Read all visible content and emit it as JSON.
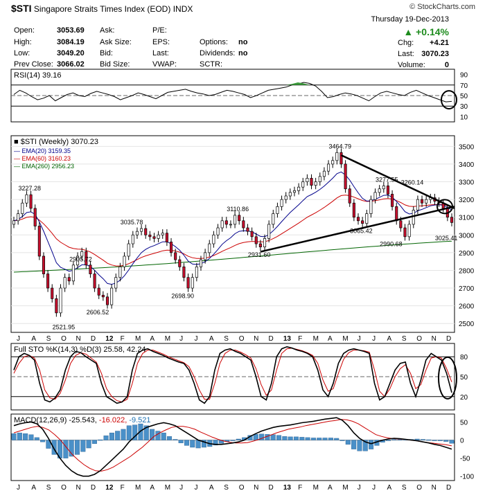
{
  "header": {
    "symbol": "$STI",
    "name": "Singapore Straits Times Index (EOD)",
    "exchange": "INDX",
    "brand": "© StockCharts.com",
    "date": "Thursday  19-Dec-2013",
    "change_pct": "+0.14%",
    "up_color": "#1e8c1e"
  },
  "quote": {
    "open_label": "Open:",
    "open": "3053.69",
    "high_label": "High:",
    "high": "3084.19",
    "low_label": "Low:",
    "low": "3049.20",
    "prev_label": "Prev Close:",
    "prev": "3066.02",
    "ask_label": "Ask:",
    "asksize_label": "Ask Size:",
    "bid_label": "Bid:",
    "bidsize_label": "Bid Size:",
    "pe_label": "P/E:",
    "eps_label": "EPS:",
    "last_label": "Last:",
    "vwap_label": "VWAP:",
    "options_label": "Options:",
    "options": "no",
    "dividends_label": "Dividends:",
    "dividends": "no",
    "sctr_label": "SCTR:",
    "chg_label": "Chg:",
    "chg": "+4.21",
    "last2_label": "Last:",
    "last2": "3070.23",
    "volume_label": "Volume:",
    "volume": "0"
  },
  "chart_data": [
    {
      "type": "line",
      "panel": "rsi",
      "legend": "RSI(14) 39.16",
      "ylim": [
        0,
        100
      ],
      "ticks": [
        "70",
        "50",
        "30"
      ],
      "tick_values": [
        70,
        50,
        30
      ],
      "extra_ticks": [
        "90",
        "10"
      ],
      "extra_values": [
        90,
        10
      ],
      "series": [
        {
          "values": [
            52,
            60,
            55,
            48,
            42,
            45,
            50,
            40,
            46,
            52,
            55,
            50,
            48,
            54,
            58,
            55,
            52,
            48,
            42,
            46,
            50,
            55,
            52,
            48,
            44,
            50,
            56,
            58,
            60,
            62,
            58,
            55,
            53,
            50,
            52,
            56,
            60,
            58,
            55,
            52,
            46,
            50,
            55,
            60,
            62,
            64,
            66,
            70,
            72,
            75,
            73,
            68,
            58,
            46,
            48,
            52,
            55,
            53,
            50,
            45,
            40,
            48,
            55,
            58,
            55,
            52,
            50,
            56,
            60,
            55,
            50,
            46,
            42,
            38,
            39
          ]
        }
      ]
    },
    {
      "type": "candlestick",
      "panel": "price",
      "legend": "$STI (Weekly) 3070.23",
      "ylim": [
        2450,
        3560
      ],
      "yticks": [
        2500,
        2600,
        2700,
        2800,
        2900,
        3000,
        3100,
        3200,
        3300,
        3400,
        3500
      ],
      "ytick_labels": [
        "2500",
        "2600",
        "2700",
        "2800",
        "2900",
        "3000",
        "3100",
        "3200",
        "3300",
        "3400",
        "3500"
      ],
      "x_labels": [
        "J",
        "A",
        "S",
        "O",
        "N",
        "D",
        "12",
        "F",
        "M",
        "A",
        "M",
        "J",
        "J",
        "A",
        "S",
        "O",
        "N",
        "D",
        "13",
        "F",
        "M",
        "A",
        "M",
        "J",
        "J",
        "A",
        "S",
        "O",
        "N",
        "D"
      ],
      "close": [
        3080,
        3120,
        3180,
        3227,
        3150,
        3050,
        2880,
        2780,
        2700,
        2640,
        2560,
        2700,
        2760,
        2740,
        2830,
        2880,
        2906,
        2830,
        2780,
        2700,
        2660,
        2650,
        2606,
        2700,
        2760,
        2820,
        2880,
        2950,
        3000,
        3020,
        3036,
        3000,
        2990,
        2980,
        3000,
        3010,
        2960,
        2900,
        2860,
        2820,
        2760,
        2700,
        2760,
        2820,
        2860,
        2900,
        2950,
        3000,
        3040,
        3080,
        3060,
        3060,
        3111,
        3080,
        3040,
        3020,
        2990,
        2950,
        2932,
        2980,
        3060,
        3120,
        3160,
        3200,
        3220,
        3240,
        3250,
        3270,
        3300,
        3320,
        3280,
        3300,
        3330,
        3360,
        3400,
        3420,
        3465,
        3400,
        3260,
        3180,
        3100,
        3080,
        3065,
        3120,
        3200,
        3240,
        3260,
        3277,
        3230,
        3160,
        3080,
        3040,
        2990,
        3060,
        3140,
        3200,
        3180,
        3200,
        3210,
        3190,
        3180,
        3150,
        3100,
        3070
      ],
      "ema20": {
        "legend": "EMA(20) 3159.35",
        "color": "#00008b"
      },
      "ema60": {
        "legend": "EMA(60) 3160.23",
        "color": "#cc0000"
      },
      "ema260": {
        "legend": "EMA(260) 2956.23",
        "color": "#006400"
      },
      "annotations": [
        "3227.28",
        "3464.79",
        "3277.55",
        "3260.14",
        "3110.86",
        "3035.78",
        "2905.72",
        "3065.42",
        "3025.41",
        "2931.60",
        "2990.68",
        "2698.90",
        "2606.52",
        "2521.95"
      ],
      "annotation_values": [
        3227.28,
        3464.79,
        3277.55,
        3260.14,
        3110.86,
        3035.78,
        2905.72,
        3065.42,
        3025.41,
        2931.6,
        2990.68,
        2698.9,
        2606.52,
        2521.95
      ]
    },
    {
      "type": "line",
      "panel": "sto",
      "legend": "Full STO %K(14,3) %D(3) 25.58, 42.24",
      "ylim": [
        0,
        100
      ],
      "ticks": [
        "80",
        "50",
        "20"
      ],
      "tick_values": [
        80,
        50,
        20
      ],
      "series": [
        {
          "color": "#000000",
          "values": [
            60,
            80,
            85,
            82,
            75,
            40,
            15,
            12,
            18,
            30,
            60,
            80,
            88,
            86,
            80,
            75,
            70,
            40,
            20,
            15,
            10,
            12,
            20,
            60,
            85,
            90,
            92,
            88,
            85,
            82,
            78,
            75,
            72,
            70,
            60,
            40,
            15,
            10,
            20,
            60,
            85,
            90,
            92,
            88,
            85,
            80,
            75,
            50,
            20,
            15,
            40,
            80,
            92,
            95,
            93,
            90,
            88,
            85,
            80,
            60,
            30,
            20,
            40,
            70,
            85,
            90,
            92,
            90,
            88,
            85,
            40,
            15,
            20,
            40,
            60,
            70,
            72,
            40,
            20,
            45,
            75,
            85,
            80,
            75,
            55,
            26
          ]
        },
        {
          "color": "#cc0000",
          "values": [
            55,
            70,
            80,
            82,
            78,
            60,
            30,
            18,
            16,
            25,
            45,
            70,
            82,
            86,
            84,
            78,
            72,
            55,
            32,
            20,
            14,
            12,
            16,
            40,
            70,
            85,
            90,
            90,
            87,
            84,
            80,
            77,
            74,
            71,
            65,
            50,
            30,
            16,
            16,
            40,
            70,
            85,
            90,
            90,
            87,
            83,
            78,
            62,
            38,
            22,
            30,
            60,
            85,
            92,
            93,
            91,
            89,
            86,
            82,
            70,
            45,
            28,
            32,
            55,
            76,
            86,
            90,
            90,
            89,
            87,
            60,
            28,
            20,
            32,
            50,
            62,
            68,
            55,
            32,
            38,
            60,
            78,
            80,
            78,
            62,
            42
          ]
        }
      ]
    },
    {
      "type": "line",
      "panel": "macd",
      "legend_a": "MACD(12,26,9)",
      "legend_b": "-25.543,",
      "legend_c": "-16.022,",
      "legend_d": "-9.521",
      "ylim": [
        -112,
        72
      ],
      "ticks": [
        "50",
        "0",
        "-50",
        "-100"
      ],
      "tick_values": [
        50,
        0,
        -50,
        -100
      ],
      "macd": [
        40,
        45,
        48,
        50,
        45,
        30,
        5,
        -25,
        -50,
        -70,
        -85,
        -95,
        -100,
        -100,
        -95,
        -85,
        -70,
        -55,
        -40,
        -25,
        -5,
        10,
        25,
        35,
        40,
        45,
        48,
        45,
        40,
        30,
        20,
        10,
        0,
        -5,
        -10,
        -12,
        -12,
        -10,
        -8,
        -5,
        0,
        10,
        18,
        25,
        30,
        35,
        38,
        40,
        42,
        45,
        48,
        50,
        52,
        55,
        58,
        60,
        62,
        55,
        40,
        20,
        5,
        -5,
        -10,
        -5,
        0,
        3,
        5,
        4,
        2,
        0,
        -2,
        -5,
        -8,
        -12,
        -15,
        -20,
        -25
      ],
      "signal": [
        20,
        25,
        30,
        35,
        38,
        35,
        28,
        15,
        0,
        -20,
        -40,
        -55,
        -68,
        -78,
        -85,
        -86,
        -82,
        -75,
        -65,
        -55,
        -45,
        -32,
        -20,
        -5,
        10,
        20,
        28,
        35,
        38,
        38,
        35,
        30,
        22,
        15,
        8,
        2,
        -3,
        -6,
        -8,
        -8,
        -7,
        -3,
        2,
        8,
        14,
        20,
        25,
        30,
        33,
        36,
        40,
        43,
        46,
        49,
        52,
        54,
        57,
        56,
        52,
        45,
        35,
        25,
        15,
        10,
        6,
        4,
        3,
        2,
        0,
        -2,
        -5,
        -7,
        -9,
        -11,
        -13,
        -16
      ],
      "hist": [
        18,
        20,
        18,
        15,
        7,
        -5,
        -23,
        -40,
        -50,
        -50,
        -45,
        -40,
        -32,
        -22,
        -10,
        1,
        12,
        20,
        25,
        30,
        40,
        42,
        45,
        40,
        30,
        25,
        20,
        10,
        2,
        -8,
        -15,
        -20,
        -22,
        -20,
        -18,
        -14,
        -9,
        -4,
        0,
        3,
        7,
        13,
        16,
        17,
        16,
        15,
        13,
        10,
        9,
        9,
        8,
        7,
        6,
        6,
        6,
        6,
        5,
        -1,
        -12,
        -25,
        -30,
        -30,
        -25,
        -15,
        -6,
        -1,
        2,
        2,
        2,
        2,
        3,
        2,
        1,
        -1,
        -2,
        -4,
        -9
      ]
    }
  ]
}
